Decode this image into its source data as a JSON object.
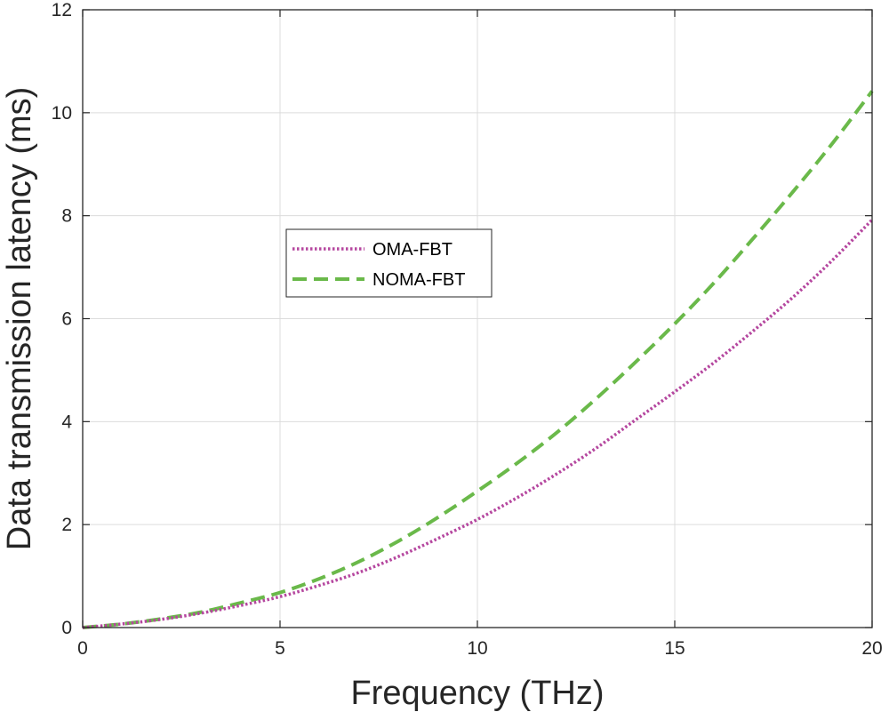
{
  "chart_data": {
    "type": "line",
    "title": "",
    "xlabel": "Frequency (THz)",
    "ylabel": "Data transmission latency (ms)",
    "xlim": [
      0,
      20
    ],
    "ylim": [
      0,
      12
    ],
    "xticks": [
      0,
      5,
      10,
      15,
      20
    ],
    "yticks": [
      0,
      2,
      4,
      6,
      8,
      10,
      12
    ],
    "grid": true,
    "legend_position": "center-left",
    "series": [
      {
        "name": "OMA-FBT",
        "style": "dotted",
        "color": "#b5479f",
        "x": [
          0,
          1,
          2,
          3,
          4,
          5,
          6,
          7,
          8,
          9,
          10,
          11,
          12,
          13,
          14,
          15,
          16,
          17,
          18,
          19,
          20
        ],
        "y": [
          0,
          0.07,
          0.16,
          0.28,
          0.43,
          0.6,
          0.82,
          1.07,
          1.38,
          1.73,
          2.1,
          2.52,
          2.98,
          3.48,
          4.03,
          4.58,
          5.15,
          5.77,
          6.42,
          7.14,
          7.92
        ]
      },
      {
        "name": "NOMA-FBT",
        "style": "dashed",
        "color": "#6ab94a",
        "x": [
          0,
          1,
          2,
          3,
          4,
          5,
          6,
          7,
          8,
          9,
          10,
          11,
          12,
          13,
          14,
          15,
          16,
          17,
          18,
          19,
          20
        ],
        "y": [
          0,
          0.07,
          0.17,
          0.3,
          0.48,
          0.68,
          0.95,
          1.28,
          1.68,
          2.14,
          2.65,
          3.19,
          3.78,
          4.44,
          5.15,
          5.9,
          6.7,
          7.57,
          8.47,
          9.41,
          10.42
        ]
      }
    ]
  }
}
